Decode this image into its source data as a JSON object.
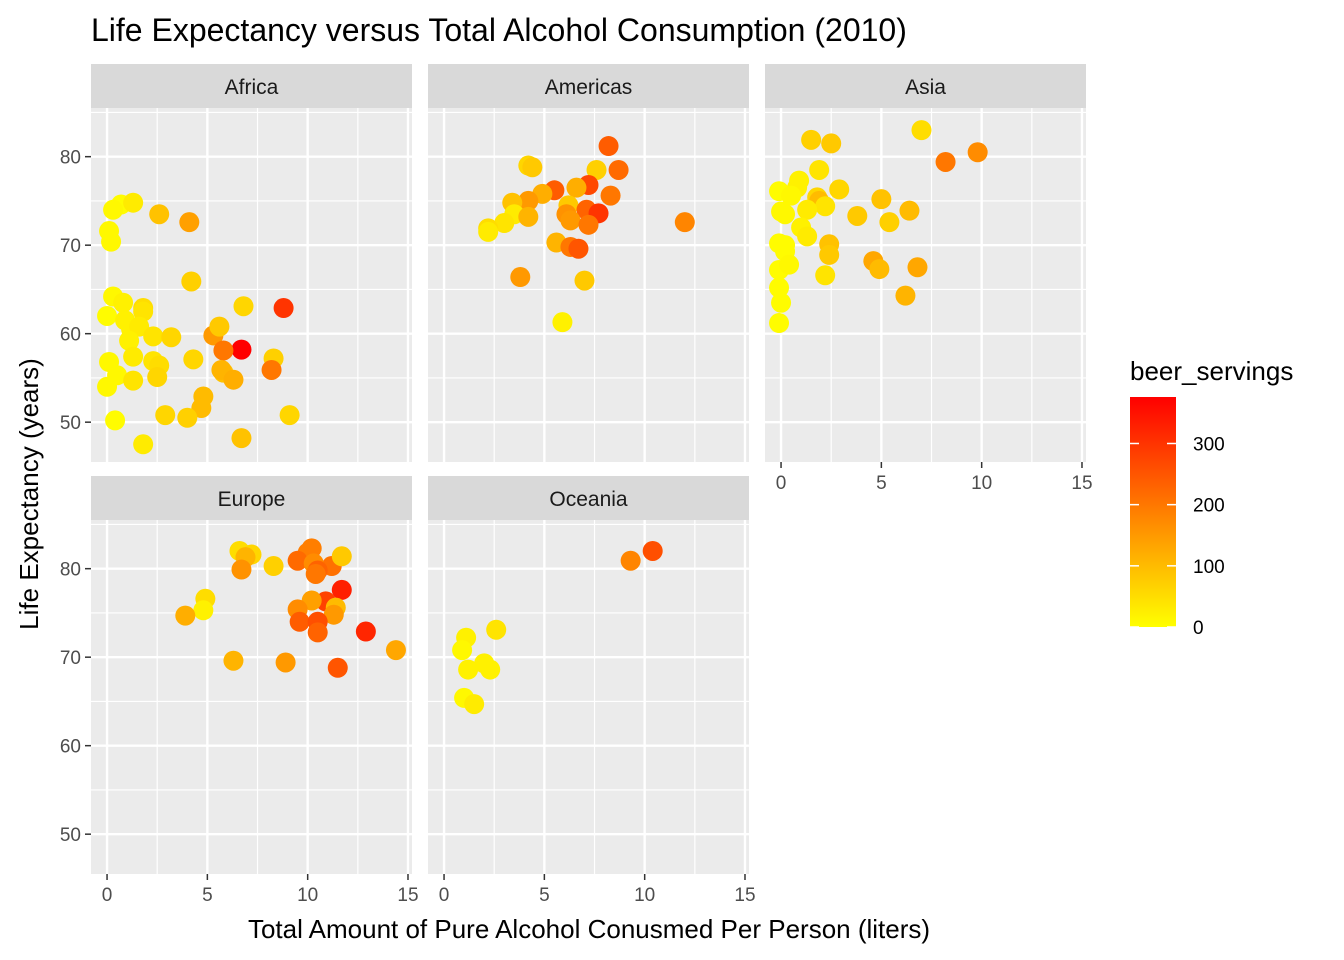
{
  "chart_data": {
    "type": "scatter",
    "title": "Life Expectancy versus Total Alcohol Consumption (2010)",
    "xlabel": "Total Amount of Pure Alcohol Conusmed Per Person (liters)",
    "ylabel": "Life Expectancy (years)",
    "xlim": [
      -0.8,
      15.2
    ],
    "ylim": [
      45.5,
      85.5
    ],
    "x_ticks": [
      0,
      5,
      10,
      15
    ],
    "y_ticks": [
      50,
      60,
      70,
      80
    ],
    "grid": true,
    "facet_layout": "3 columns x 2 rows",
    "color_scale": {
      "name": "beer_servings",
      "low_color": "#ffff00",
      "high_color": "#ff0000",
      "min": 0,
      "max": 376,
      "ticks": [
        0,
        100,
        200,
        300
      ],
      "legend_position": "right"
    },
    "facets": [
      {
        "name": "Africa",
        "points": [
          [
            8.8,
            62.9,
            300
          ],
          [
            6.7,
            58.2,
            376
          ],
          [
            0.7,
            74.6,
            5
          ],
          [
            1.3,
            74.8,
            30
          ],
          [
            2.6,
            73.5,
            90
          ],
          [
            4.1,
            72.6,
            140
          ],
          [
            0.1,
            71.6,
            10
          ],
          [
            0.2,
            70.4,
            10
          ],
          [
            0.3,
            74.0,
            10
          ],
          [
            4.2,
            65.9,
            70
          ],
          [
            0.3,
            64.2,
            10
          ],
          [
            0.8,
            63.5,
            20
          ],
          [
            1.8,
            62.9,
            50
          ],
          [
            1.8,
            62.5,
            40
          ],
          [
            6.8,
            63.1,
            60
          ],
          [
            0.0,
            62.0,
            5
          ],
          [
            0.9,
            61.5,
            20
          ],
          [
            1.2,
            60.5,
            20
          ],
          [
            1.6,
            60.8,
            30
          ],
          [
            5.3,
            59.8,
            150
          ],
          [
            2.3,
            59.7,
            40
          ],
          [
            3.2,
            59.6,
            60
          ],
          [
            1.1,
            59.2,
            20
          ],
          [
            5.8,
            58.1,
            200
          ],
          [
            5.6,
            60.8,
            80
          ],
          [
            0.1,
            56.8,
            10
          ],
          [
            2.3,
            56.9,
            40
          ],
          [
            2.6,
            56.4,
            50
          ],
          [
            4.3,
            57.1,
            60
          ],
          [
            8.3,
            57.2,
            70
          ],
          [
            1.3,
            57.4,
            30
          ],
          [
            0.5,
            55.3,
            10
          ],
          [
            2.5,
            55.1,
            60
          ],
          [
            5.8,
            55.6,
            90
          ],
          [
            5.7,
            55.9,
            110
          ],
          [
            6.3,
            54.8,
            120
          ],
          [
            8.2,
            55.9,
            200
          ],
          [
            1.3,
            54.7,
            40
          ],
          [
            0.0,
            54.0,
            10
          ],
          [
            4.8,
            52.9,
            100
          ],
          [
            4.7,
            51.6,
            100
          ],
          [
            2.9,
            50.8,
            60
          ],
          [
            4.0,
            50.5,
            70
          ],
          [
            9.1,
            50.8,
            60
          ],
          [
            0.4,
            50.2,
            5
          ],
          [
            1.8,
            47.5,
            30
          ],
          [
            6.7,
            48.2,
            90
          ]
        ]
      },
      {
        "name": "Americas",
        "points": [
          [
            8.2,
            81.2,
            240
          ],
          [
            4.2,
            79.0,
            60
          ],
          [
            4.4,
            78.8,
            80
          ],
          [
            7.6,
            78.5,
            70
          ],
          [
            8.7,
            78.5,
            220
          ],
          [
            7.2,
            76.8,
            270
          ],
          [
            6.6,
            76.5,
            120
          ],
          [
            5.5,
            76.2,
            240
          ],
          [
            4.9,
            75.8,
            120
          ],
          [
            8.3,
            75.6,
            200
          ],
          [
            4.2,
            75.0,
            150
          ],
          [
            3.4,
            74.8,
            90
          ],
          [
            6.2,
            74.5,
            80
          ],
          [
            7.1,
            74.0,
            230
          ],
          [
            7.7,
            73.6,
            300
          ],
          [
            6.1,
            73.5,
            160
          ],
          [
            3.5,
            73.5,
            30
          ],
          [
            4.2,
            73.2,
            110
          ],
          [
            6.3,
            72.8,
            150
          ],
          [
            7.2,
            72.3,
            200
          ],
          [
            3.0,
            72.5,
            40
          ],
          [
            12.0,
            72.6,
            180
          ],
          [
            2.2,
            71.9,
            50
          ],
          [
            2.2,
            71.5,
            30
          ],
          [
            5.6,
            70.3,
            110
          ],
          [
            6.3,
            69.8,
            200
          ],
          [
            6.7,
            69.6,
            250
          ],
          [
            3.8,
            66.4,
            150
          ],
          [
            7.0,
            66.0,
            80
          ],
          [
            5.9,
            61.3,
            20
          ]
        ]
      },
      {
        "name": "Asia",
        "points": [
          [
            7.0,
            83.0,
            50
          ],
          [
            1.5,
            81.9,
            70
          ],
          [
            2.5,
            81.5,
            80
          ],
          [
            9.8,
            80.5,
            170
          ],
          [
            8.2,
            79.4,
            200
          ],
          [
            1.9,
            78.5,
            40
          ],
          [
            0.9,
            77.3,
            20
          ],
          [
            0.8,
            76.5,
            20
          ],
          [
            2.9,
            76.3,
            60
          ],
          [
            -0.1,
            76.1,
            5
          ],
          [
            0.5,
            75.6,
            10
          ],
          [
            1.8,
            75.4,
            60
          ],
          [
            5.0,
            75.2,
            90
          ],
          [
            1.9,
            75.0,
            100
          ],
          [
            2.2,
            74.4,
            40
          ],
          [
            1.3,
            74.0,
            30
          ],
          [
            0.0,
            73.8,
            10
          ],
          [
            0.2,
            73.5,
            10
          ],
          [
            3.8,
            73.3,
            80
          ],
          [
            5.4,
            72.6,
            70
          ],
          [
            6.4,
            73.9,
            100
          ],
          [
            1.0,
            72.0,
            20
          ],
          [
            1.3,
            71.0,
            30
          ],
          [
            -0.1,
            70.2,
            5
          ],
          [
            0.2,
            70.0,
            5
          ],
          [
            2.4,
            70.1,
            90
          ],
          [
            0.2,
            69.3,
            5
          ],
          [
            2.4,
            68.9,
            80
          ],
          [
            4.6,
            68.2,
            130
          ],
          [
            4.9,
            67.3,
            100
          ],
          [
            6.8,
            67.5,
            130
          ],
          [
            -0.1,
            67.2,
            5
          ],
          [
            0.4,
            67.8,
            10
          ],
          [
            2.2,
            66.6,
            40
          ],
          [
            -0.1,
            65.2,
            5
          ],
          [
            6.2,
            64.3,
            110
          ],
          [
            0.0,
            63.5,
            5
          ],
          [
            -0.1,
            61.2,
            5
          ]
        ]
      },
      {
        "name": "Europe",
        "points": [
          [
            6.6,
            82.0,
            50
          ],
          [
            10.2,
            82.3,
            190
          ],
          [
            7.2,
            81.6,
            60
          ],
          [
            10.0,
            81.8,
            190
          ],
          [
            9.5,
            80.9,
            220
          ],
          [
            6.9,
            81.3,
            110
          ],
          [
            11.2,
            80.3,
            210
          ],
          [
            8.3,
            80.3,
            70
          ],
          [
            10.3,
            80.6,
            170
          ],
          [
            10.5,
            79.8,
            230
          ],
          [
            10.4,
            79.4,
            200
          ],
          [
            11.7,
            81.4,
            80
          ],
          [
            6.7,
            79.9,
            160
          ],
          [
            11.7,
            77.6,
            330
          ],
          [
            4.9,
            76.6,
            50
          ],
          [
            10.9,
            76.3,
            280
          ],
          [
            10.2,
            76.4,
            140
          ],
          [
            9.5,
            75.4,
            170
          ],
          [
            11.4,
            75.6,
            100
          ],
          [
            4.8,
            75.3,
            20
          ],
          [
            3.9,
            74.7,
            120
          ],
          [
            11.3,
            74.8,
            150
          ],
          [
            9.6,
            74.0,
            240
          ],
          [
            10.5,
            74.0,
            260
          ],
          [
            10.5,
            72.8,
            230
          ],
          [
            12.9,
            72.9,
            320
          ],
          [
            14.4,
            70.8,
            130
          ],
          [
            6.3,
            69.6,
            110
          ],
          [
            8.9,
            69.4,
            150
          ],
          [
            11.5,
            68.8,
            250
          ]
        ]
      },
      {
        "name": "Oceania",
        "points": [
          [
            10.4,
            82.0,
            260
          ],
          [
            9.3,
            80.9,
            180
          ],
          [
            2.6,
            73.1,
            40
          ],
          [
            1.1,
            72.2,
            20
          ],
          [
            0.9,
            70.8,
            10
          ],
          [
            2.0,
            69.3,
            20
          ],
          [
            1.2,
            68.6,
            20
          ],
          [
            2.3,
            68.6,
            20
          ],
          [
            1.0,
            65.4,
            10
          ],
          [
            1.5,
            64.7,
            30
          ]
        ]
      }
    ]
  }
}
